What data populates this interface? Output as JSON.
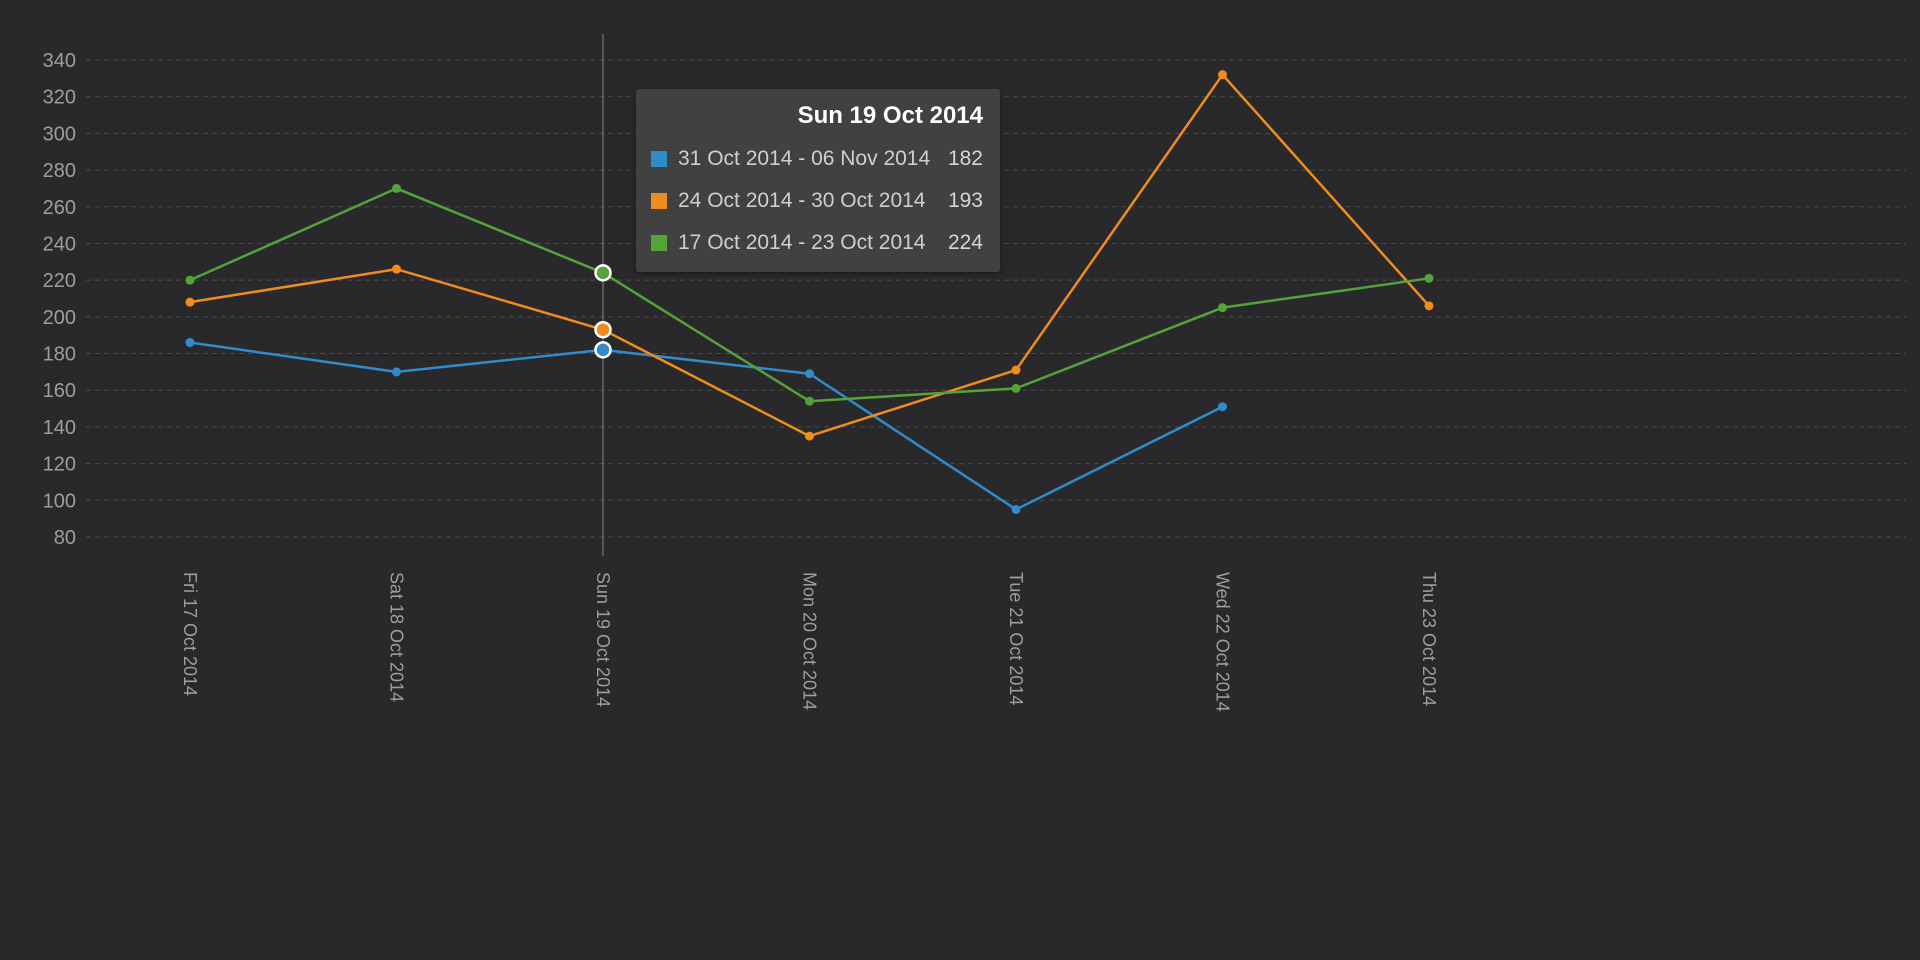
{
  "chart_data": {
    "type": "line",
    "title": "",
    "categories": [
      "Fri 17 Oct 2014",
      "Sat 18 Oct 2014",
      "Sun 19 Oct 2014",
      "Mon 20 Oct 2014",
      "Tue 21 Oct 2014",
      "Wed 22 Oct 2014",
      "Thu 23 Oct 2014"
    ],
    "series": [
      {
        "name": "31 Oct 2014 - 06 Nov 2014",
        "color": "#2f8bc9",
        "values": [
          186,
          170,
          182,
          169,
          95,
          151,
          null
        ]
      },
      {
        "name": "24 Oct 2014 - 30 Oct 2014",
        "color": "#ef8c1e",
        "values": [
          208,
          226,
          193,
          135,
          171,
          332,
          206
        ]
      },
      {
        "name": "17 Oct 2014 - 23 Oct 2014",
        "color": "#53a339",
        "values": [
          220,
          270,
          224,
          154,
          161,
          205,
          221
        ]
      }
    ],
    "ylim": [
      80,
      340
    ],
    "yticks": [
      80,
      100,
      120,
      140,
      160,
      180,
      200,
      220,
      240,
      260,
      280,
      300,
      320,
      340
    ],
    "grid": "dashed-horizontal",
    "legend_position": "none",
    "hover_index": 2,
    "hover_category": "Sun 19 Oct 2014"
  },
  "tooltip": {
    "title": "Sun 19 Oct 2014",
    "rows": [
      {
        "label": "31 Oct 2014 - 06 Nov 2014",
        "value": "182",
        "color": "#2f8bc9"
      },
      {
        "label": "24 Oct 2014 - 30 Oct 2014",
        "value": "193",
        "color": "#ef8c1e"
      },
      {
        "label": "17 Oct 2014 - 23 Oct 2014",
        "value": "224",
        "color": "#53a339"
      }
    ]
  },
  "colors": {
    "background": "#29292b",
    "grid": "#4b4b4b",
    "axis_label": "#9e9e9e",
    "crosshair": "#848484",
    "tooltip_bg": "rgba(66,66,66,0.95)",
    "highlight_ring": "#ffffff"
  }
}
